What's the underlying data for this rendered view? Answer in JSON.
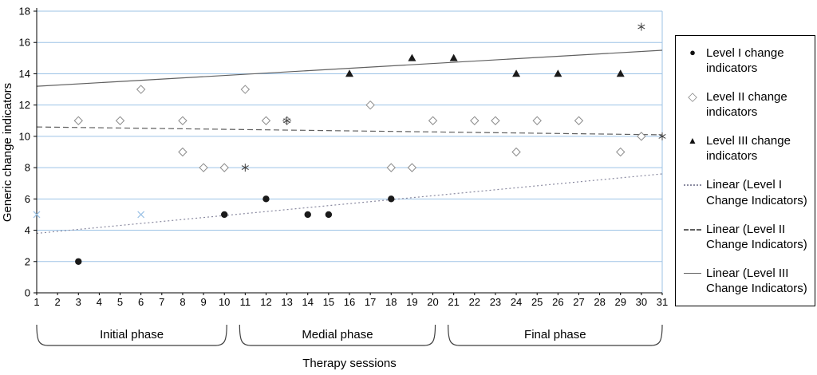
{
  "chart": {
    "ylabel": "Generic change indicators",
    "xlabel": "Therapy sessions",
    "legend": [
      {
        "marker": "circle-filled",
        "label": "Level I change indicators"
      },
      {
        "marker": "diamond-open",
        "label": "Level II change indicators"
      },
      {
        "marker": "triangle-filled",
        "label": "Level III change indicators"
      },
      {
        "marker": "line-dotted",
        "label": "Linear (Level I Change Indicators)"
      },
      {
        "marker": "line-dashed",
        "label": "Linear (Level II Change Indicators)"
      },
      {
        "marker": "line-solid",
        "label": "Linear (Level III Change Indicators)"
      }
    ]
  },
  "chart_data": {
    "type": "scatter",
    "title": "",
    "xlabel": "Therapy sessions",
    "ylabel": "Generic change indicators",
    "xlim": [
      1,
      31
    ],
    "ylim": [
      0,
      18
    ],
    "x_ticks": [
      1,
      2,
      3,
      4,
      5,
      6,
      7,
      8,
      9,
      10,
      11,
      12,
      13,
      14,
      15,
      16,
      17,
      18,
      19,
      20,
      21,
      22,
      23,
      24,
      25,
      26,
      27,
      28,
      29,
      30,
      31
    ],
    "y_ticks": [
      0,
      2,
      4,
      6,
      8,
      10,
      12,
      14,
      16,
      18
    ],
    "grid_on": true,
    "grid_color": "#9dc3e6",
    "legend_position": "right",
    "phases": [
      {
        "label": "Initial phase",
        "from": 1,
        "to": 10
      },
      {
        "label": "Medial phase",
        "from": 11,
        "to": 20
      },
      {
        "label": "Final phase",
        "from": 21,
        "to": 31
      }
    ],
    "series": [
      {
        "name": "Level I change indicators",
        "marker": "circle-filled",
        "color": "#1a1a1a",
        "points": [
          [
            3,
            2
          ],
          [
            10,
            5
          ],
          [
            12,
            6
          ],
          [
            14,
            5
          ],
          [
            15,
            5
          ],
          [
            18,
            6
          ]
        ]
      },
      {
        "name": "Level II change indicators",
        "marker": "diamond-open",
        "color": "#8c8c8c",
        "points": [
          [
            3,
            11
          ],
          [
            5,
            11
          ],
          [
            6,
            13
          ],
          [
            8,
            11
          ],
          [
            8,
            9
          ],
          [
            9,
            8
          ],
          [
            10,
            8
          ],
          [
            11,
            13
          ],
          [
            12,
            11
          ],
          [
            13,
            11
          ],
          [
            17,
            12
          ],
          [
            18,
            8
          ],
          [
            19,
            8
          ],
          [
            20,
            11
          ],
          [
            22,
            11
          ],
          [
            23,
            11
          ],
          [
            24,
            9
          ],
          [
            25,
            11
          ],
          [
            27,
            11
          ],
          [
            29,
            9
          ],
          [
            30,
            10
          ]
        ]
      },
      {
        "name": "Level III change indicators",
        "marker": "triangle-filled",
        "color": "#1a1a1a",
        "points": [
          [
            16,
            14
          ],
          [
            19,
            15
          ],
          [
            21,
            15
          ],
          [
            24,
            14
          ],
          [
            26,
            14
          ],
          [
            29,
            14
          ]
        ]
      },
      {
        "name": "Asterisk markers",
        "marker": "asterisk",
        "color": "#3f3f3f",
        "points": [
          [
            11,
            8
          ],
          [
            13,
            11
          ],
          [
            30,
            17
          ],
          [
            31,
            10
          ]
        ]
      },
      {
        "name": "X markers",
        "marker": "x-mark",
        "color": "#9dc3e6",
        "points": [
          [
            1,
            5
          ],
          [
            6,
            5
          ]
        ]
      }
    ],
    "trendlines": [
      {
        "name": "Linear (Level I Change Indicators)",
        "style": "dotted",
        "color": "#8a8aa0",
        "start": [
          1,
          3.8
        ],
        "end": [
          31,
          7.6
        ]
      },
      {
        "name": "Linear (Level II Change Indicators)",
        "style": "dashed",
        "color": "#606060",
        "start": [
          1,
          10.6
        ],
        "end": [
          31,
          10.1
        ]
      },
      {
        "name": "Linear (Level III Change Indicators)",
        "style": "solid",
        "color": "#606060",
        "start": [
          1,
          13.2
        ],
        "end": [
          31,
          15.5
        ]
      }
    ]
  }
}
